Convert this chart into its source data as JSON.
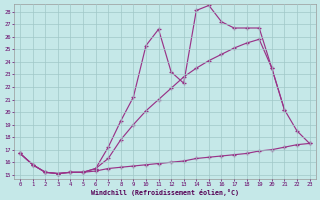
{
  "xlabel": "Windchill (Refroidissement éolien,°C)",
  "background_color": "#c5e8e8",
  "grid_color": "#a0c8c8",
  "line_color": "#993388",
  "xlim_min": -0.5,
  "xlim_max": 23.5,
  "ylim_min": 14.7,
  "ylim_max": 28.6,
  "xtick_vals": [
    0,
    1,
    2,
    3,
    4,
    5,
    6,
    7,
    8,
    9,
    10,
    11,
    12,
    13,
    14,
    15,
    16,
    17,
    18,
    19,
    20,
    21,
    22,
    23
  ],
  "ytick_vals": [
    15,
    16,
    17,
    18,
    19,
    20,
    21,
    22,
    23,
    24,
    25,
    26,
    27,
    28
  ],
  "curve1_x": [
    0,
    1,
    2,
    3,
    4,
    5,
    6,
    7,
    8,
    9,
    10,
    11,
    12,
    13,
    14,
    15,
    16,
    17,
    18,
    19,
    20,
    21
  ],
  "curve1_y": [
    16.7,
    15.8,
    15.2,
    15.1,
    15.2,
    15.2,
    15.5,
    17.2,
    19.3,
    21.2,
    25.3,
    26.6,
    23.2,
    22.3,
    28.1,
    28.5,
    27.2,
    26.7,
    26.7,
    26.7,
    23.5,
    20.2
  ],
  "curve2_x": [
    0,
    1,
    2,
    3,
    4,
    5,
    6,
    7,
    8,
    9,
    10,
    11,
    12,
    13,
    14,
    15,
    16,
    17,
    18,
    19,
    20,
    21,
    22,
    23
  ],
  "curve2_y": [
    16.7,
    15.8,
    15.2,
    15.1,
    15.2,
    15.2,
    15.5,
    16.3,
    17.8,
    19.0,
    20.1,
    21.0,
    21.9,
    22.8,
    23.5,
    24.1,
    24.6,
    25.1,
    25.5,
    25.8,
    23.5,
    20.2,
    18.5,
    17.5
  ],
  "curve3_x": [
    0,
    1,
    2,
    3,
    4,
    5,
    6,
    7,
    8,
    9,
    10,
    11,
    12,
    13,
    14,
    15,
    16,
    17,
    18,
    19,
    20,
    21,
    22,
    23
  ],
  "curve3_y": [
    16.7,
    15.8,
    15.2,
    15.1,
    15.2,
    15.2,
    15.3,
    15.5,
    15.6,
    15.7,
    15.8,
    15.9,
    16.0,
    16.1,
    16.3,
    16.4,
    16.5,
    16.6,
    16.7,
    16.9,
    17.0,
    17.2,
    17.4,
    17.5
  ]
}
